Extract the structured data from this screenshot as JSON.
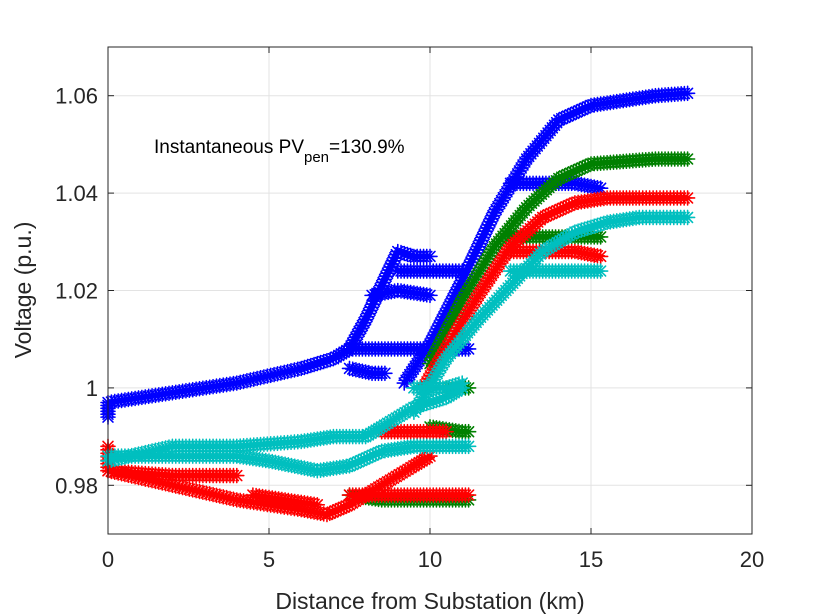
{
  "chart_data": {
    "type": "scatter",
    "xlabel": "Distance from Substation (km)",
    "ylabel": "Voltage (p.u.)",
    "xlim": [
      0,
      20
    ],
    "ylim": [
      0.97,
      1.07
    ],
    "xticks": [
      0,
      5,
      10,
      15,
      20
    ],
    "xtick_labels": [
      "0",
      "5",
      "10",
      "15",
      "20"
    ],
    "yticks": [
      0.98,
      1.0,
      1.02,
      1.04,
      1.06
    ],
    "ytick_labels": [
      "0.98",
      "1",
      "1.02",
      "1.04",
      "1.06"
    ],
    "grid": true,
    "marker": "asterisk",
    "annotation": {
      "prefix": "Instantaneous PV",
      "subscript": "pen",
      "suffix": "=130.9%"
    },
    "series": [
      {
        "color": "#0000ff",
        "branches": [
          [
            [
              0,
              0.994
            ],
            [
              0,
              0.997
            ],
            [
              2,
              0.999
            ],
            [
              4,
              1.001
            ],
            [
              6,
              1.004
            ],
            [
              7,
              1.006
            ],
            [
              7.5,
              1.008
            ],
            [
              8,
              1.014
            ],
            [
              8.5,
              1.021
            ],
            [
              9,
              1.028
            ],
            [
              9.5,
              1.027
            ],
            [
              10,
              1.027
            ]
          ],
          [
            [
              8.2,
              1.019
            ],
            [
              9,
              1.02
            ],
            [
              10,
              1.019
            ]
          ],
          [
            [
              7.5,
              1.008
            ],
            [
              8.5,
              1.008
            ],
            [
              9.5,
              1.008
            ],
            [
              10.5,
              1.008
            ],
            [
              11.2,
              1.008
            ]
          ],
          [
            [
              9,
              1.024
            ],
            [
              10,
              1.024
            ],
            [
              11,
              1.024
            ]
          ],
          [
            [
              7.5,
              1.004
            ],
            [
              8.2,
              1.003
            ],
            [
              8.6,
              1.003
            ]
          ],
          [
            [
              9.2,
              1.001
            ],
            [
              10,
              1.009
            ],
            [
              11,
              1.022
            ],
            [
              12,
              1.036
            ],
            [
              13,
              1.047
            ],
            [
              14,
              1.055
            ],
            [
              15,
              1.058
            ],
            [
              16,
              1.059
            ],
            [
              17,
              1.06
            ],
            [
              18,
              1.0605
            ]
          ],
          [
            [
              12.5,
              1.042
            ],
            [
              13.5,
              1.042
            ],
            [
              14.5,
              1.042
            ],
            [
              15.3,
              1.041
            ]
          ]
        ]
      },
      {
        "color": "#008000",
        "branches": [
          [
            [
              10.5,
              1.0
            ],
            [
              11.2,
              1.0
            ]
          ],
          [
            [
              10,
              0.992
            ],
            [
              11,
              0.991
            ],
            [
              11.2,
              0.991
            ]
          ],
          [
            [
              7.5,
              0.978
            ],
            [
              8.5,
              0.977
            ],
            [
              9.5,
              0.977
            ],
            [
              10.5,
              0.977
            ],
            [
              11.2,
              0.977
            ]
          ],
          [
            [
              10,
              1.005
            ],
            [
              11,
              1.018
            ],
            [
              12,
              1.029
            ],
            [
              13,
              1.037
            ],
            [
              14,
              1.043
            ],
            [
              15,
              1.046
            ],
            [
              16,
              1.0465
            ],
            [
              17,
              1.047
            ],
            [
              18,
              1.047
            ]
          ],
          [
            [
              12.5,
              1.031
            ],
            [
              13.5,
              1.031
            ],
            [
              14.5,
              1.031
            ],
            [
              15.3,
              1.031
            ]
          ]
        ]
      },
      {
        "color": "#ff0000",
        "branches": [
          [
            [
              0,
              0.988
            ],
            [
              0,
              0.983
            ],
            [
              2,
              0.982
            ],
            [
              4,
              0.982
            ]
          ],
          [
            [
              0,
              0.983
            ],
            [
              2,
              0.98
            ],
            [
              4,
              0.977
            ],
            [
              6,
              0.975
            ],
            [
              6.8,
              0.974
            ],
            [
              7.5,
              0.976
            ],
            [
              8.5,
              0.98
            ],
            [
              9.5,
              0.984
            ],
            [
              10,
              0.986
            ]
          ],
          [
            [
              4.5,
              0.978
            ],
            [
              5.5,
              0.977
            ],
            [
              6.5,
              0.976
            ]
          ],
          [
            [
              7.5,
              0.978
            ],
            [
              8.5,
              0.978
            ],
            [
              9.5,
              0.978
            ],
            [
              10.5,
              0.978
            ],
            [
              11.2,
              0.978
            ]
          ],
          [
            [
              8.5,
              0.991
            ],
            [
              9.5,
              0.991
            ],
            [
              10.5,
              0.991
            ]
          ],
          [
            [
              9.8,
              1.0
            ],
            [
              10.5,
              1.008
            ],
            [
              11.5,
              1.019
            ],
            [
              12.5,
              1.029
            ],
            [
              13.5,
              1.035
            ],
            [
              14.5,
              1.038
            ],
            [
              15.5,
              1.039
            ],
            [
              16.5,
              1.039
            ],
            [
              18,
              1.039
            ]
          ],
          [
            [
              12.5,
              1.028
            ],
            [
              13.5,
              1.028
            ],
            [
              14.5,
              1.028
            ],
            [
              15.3,
              1.027
            ]
          ]
        ]
      },
      {
        "color": "#00bfbf",
        "branches": [
          [
            [
              0,
              0.985
            ],
            [
              2,
              0.988
            ],
            [
              4,
              0.988
            ],
            [
              6,
              0.989
            ],
            [
              7,
              0.99
            ],
            [
              8,
              0.99
            ],
            [
              8.5,
              0.992
            ],
            [
              9.5,
              0.996
            ],
            [
              10.5,
              0.998
            ],
            [
              11,
              1.0
            ]
          ],
          [
            [
              0,
              0.986
            ],
            [
              2,
              0.986
            ],
            [
              4,
              0.986
            ],
            [
              5,
              0.985
            ],
            [
              6.5,
              0.983
            ],
            [
              7.5,
              0.984
            ],
            [
              8.5,
              0.987
            ],
            [
              9.5,
              0.988
            ],
            [
              10.5,
              0.988
            ],
            [
              11.2,
              0.988
            ]
          ],
          [
            [
              9.5,
              0.995
            ],
            [
              10.5,
              1.006
            ],
            [
              11.5,
              1.014
            ],
            [
              12.5,
              1.021
            ],
            [
              13.5,
              1.028
            ],
            [
              14.5,
              1.032
            ],
            [
              15.5,
              1.034
            ],
            [
              16.5,
              1.035
            ],
            [
              18,
              1.035
            ]
          ],
          [
            [
              12.5,
              1.024
            ],
            [
              13.5,
              1.024
            ],
            [
              14.5,
              1.024
            ],
            [
              15.3,
              1.024
            ]
          ],
          [
            [
              9.5,
              1.0
            ],
            [
              10.5,
              1.0
            ],
            [
              11,
              1.001
            ]
          ]
        ]
      }
    ]
  }
}
